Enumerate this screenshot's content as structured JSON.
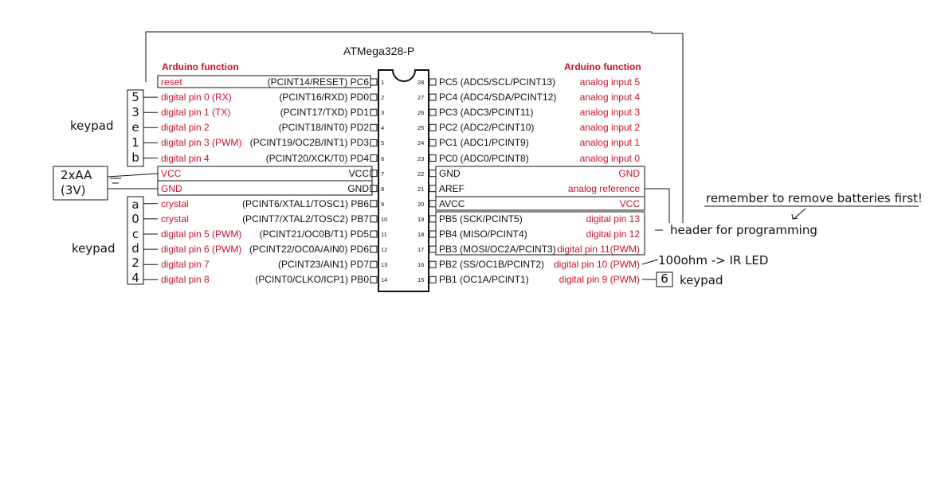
{
  "chip_title": "ATMega328-P",
  "left_header": "Arduino function",
  "right_header": "Arduino function",
  "left_pins": [
    {
      "num": "1",
      "func": "reset",
      "port": "(PCINT14/RESET) PC6"
    },
    {
      "num": "2",
      "func": "digital pin 0 (RX)",
      "port": "(PCINT16/RXD) PD0"
    },
    {
      "num": "3",
      "func": "digital pin 1 (TX)",
      "port": "(PCINT17/TXD) PD1"
    },
    {
      "num": "4",
      "func": "digital pin 2",
      "port": "(PCINT18/INT0) PD2"
    },
    {
      "num": "5",
      "func": "digital pin 3 (PWM)",
      "port": "(PCINT19/OC2B/INT1) PD3"
    },
    {
      "num": "6",
      "func": "digital pin 4",
      "port": "(PCINT20/XCK/T0) PD4"
    },
    {
      "num": "7",
      "func": "VCC",
      "port": "VCC"
    },
    {
      "num": "8",
      "func": "GND",
      "port": "GND"
    },
    {
      "num": "9",
      "func": "crystal",
      "port": "(PCINT6/XTAL1/TOSC1) PB6"
    },
    {
      "num": "10",
      "func": "crystal",
      "port": "(PCINT7/XTAL2/TOSC2) PB7"
    },
    {
      "num": "11",
      "func": "digital pin 5 (PWM)",
      "port": "(PCINT21/OC0B/T1) PD5"
    },
    {
      "num": "12",
      "func": "digital pin 6 (PWM)",
      "port": "(PCINT22/OC0A/AIN0) PD6"
    },
    {
      "num": "13",
      "func": "digital pin 7",
      "port": "(PCINT23/AIN1) PD7"
    },
    {
      "num": "14",
      "func": "digital pin 8",
      "port": "(PCINT0/CLKO/ICP1) PB0"
    }
  ],
  "right_pins": [
    {
      "num": "28",
      "port": "PC5 (ADC5/SCL/PCINT13)",
      "func": "analog input 5"
    },
    {
      "num": "27",
      "port": "PC4 (ADC4/SDA/PCINT12)",
      "func": "analog input 4"
    },
    {
      "num": "26",
      "port": "PC3 (ADC3/PCINT11)",
      "func": "analog input 3"
    },
    {
      "num": "25",
      "port": "PC2 (ADC2/PCINT10)",
      "func": "analog input 2"
    },
    {
      "num": "24",
      "port": "PC1 (ADC1/PCINT9)",
      "func": "analog input 1"
    },
    {
      "num": "23",
      "port": "PC0 (ADC0/PCINT8)",
      "func": "analog input 0"
    },
    {
      "num": "22",
      "port": "GND",
      "func": "GND"
    },
    {
      "num": "21",
      "port": "AREF",
      "func": "analog reference"
    },
    {
      "num": "20",
      "port": "AVCC",
      "func": "VCC"
    },
    {
      "num": "19",
      "port": "PB5 (SCK/PCINT5)",
      "func": "digital pin 13"
    },
    {
      "num": "18",
      "port": "PB4 (MISO/PCINT4)",
      "func": "digital pin 12"
    },
    {
      "num": "17",
      "port": "PB3 (MOSI/OC2A/PCINT3)",
      "func": "digital pin 11(PWM)"
    },
    {
      "num": "16",
      "port": "PB2 (SS/OC1B/PCINT2)",
      "func": "digital pin 10 (PWM)"
    },
    {
      "num": "15",
      "port": "PB1 (OC1A/PCINT1)",
      "func": "digital pin 9 (PWM)"
    }
  ],
  "annotations": {
    "keypad_top": "keypad",
    "keypad_top_chars": [
      "5",
      "3",
      "e",
      "1",
      "b"
    ],
    "keypad_bottom": "keypad",
    "keypad_bottom_chars": [
      "a",
      "0",
      "c",
      "d",
      "2",
      "4"
    ],
    "battery_line1": "2xAA",
    "battery_line2": "(3V)",
    "programming_header": "header for programming",
    "reminder": "remember to remove batteries first!",
    "ir_led": "100ohm -> IR LED",
    "keypad_pin9_char": "6",
    "keypad_pin9": "keypad"
  },
  "colors": {
    "function_text": "#c8102e",
    "line": "#111111"
  }
}
